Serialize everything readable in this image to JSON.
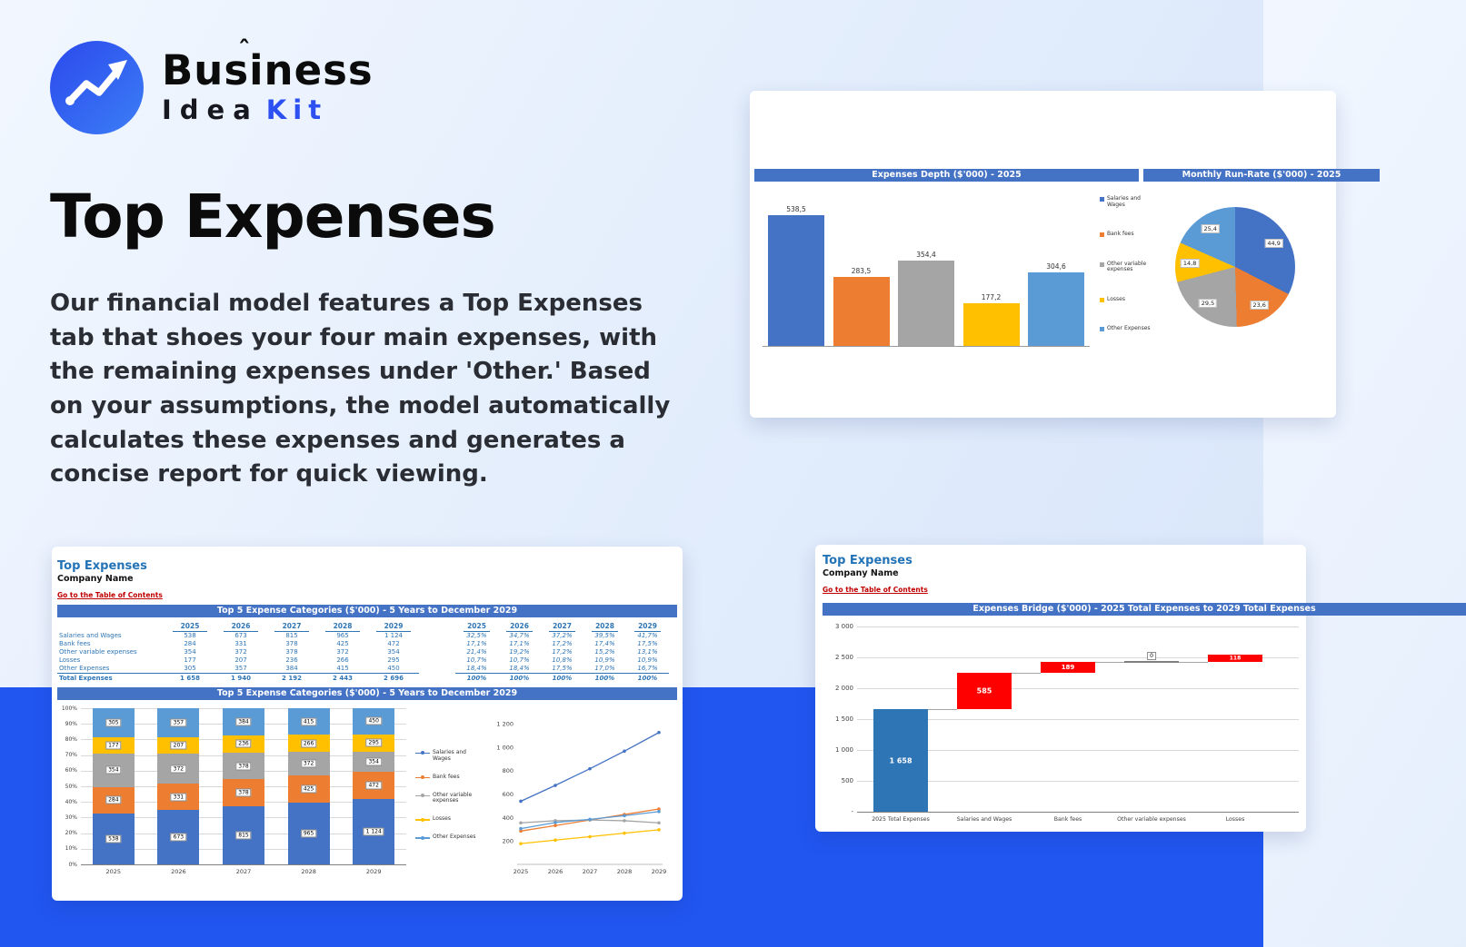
{
  "logo": {
    "name": "Business",
    "caret": "ˆ",
    "idea": "Idea",
    "kit": "Kit"
  },
  "hero": {
    "title": "Top Expenses",
    "description": "Our financial model features a Top Expenses tab that shoes your four main expenses, with the remaining expenses under 'Other.' Based on your assumptions, the model automatically calculates these expenses and generates a concise report for quick viewing."
  },
  "sheet": {
    "title": "Top Expenses",
    "company": "Company Name",
    "toc_link": "Go to the Table of Contents"
  },
  "expense_table": {
    "header": "Top 5 Expense Categories ($'000) - 5 Years to December 2029",
    "chart_header": "Top 5 Expense Categories ($'000) - 5 Years to December 2029",
    "years": [
      "2025",
      "2026",
      "2027",
      "2028",
      "2029"
    ],
    "rows": [
      {
        "label": "Salaries and Wages",
        "values": [
          "538",
          "673",
          "815",
          "965",
          "1 124"
        ],
        "pcts": [
          "32,5%",
          "34,7%",
          "37,2%",
          "39,5%",
          "41,7%"
        ]
      },
      {
        "label": "Bank fees",
        "values": [
          "284",
          "331",
          "378",
          "425",
          "472"
        ],
        "pcts": [
          "17,1%",
          "17,1%",
          "17,2%",
          "17,4%",
          "17,5%"
        ]
      },
      {
        "label": "Other variable expenses",
        "values": [
          "354",
          "372",
          "378",
          "372",
          "354"
        ],
        "pcts": [
          "21,4%",
          "19,2%",
          "17,2%",
          "15,2%",
          "13,1%"
        ]
      },
      {
        "label": "Losses",
        "values": [
          "177",
          "207",
          "236",
          "266",
          "295"
        ],
        "pcts": [
          "10,7%",
          "10,7%",
          "10,8%",
          "10,9%",
          "10,9%"
        ]
      },
      {
        "label": "Other Expenses",
        "values": [
          "305",
          "357",
          "384",
          "415",
          "450"
        ],
        "pcts": [
          "18,4%",
          "18,4%",
          "17,5%",
          "17,0%",
          "16,7%"
        ]
      }
    ],
    "total": {
      "label": "Total Expenses",
      "values": [
        "1 658",
        "1 940",
        "2 192",
        "2 443",
        "2 696"
      ],
      "pcts": [
        "100%",
        "100%",
        "100%",
        "100%",
        "100%"
      ]
    }
  },
  "colors": {
    "series": [
      "#4472c4",
      "#ed7d31",
      "#a5a5a5",
      "#ffc000",
      "#5b9bd5"
    ],
    "excel_header": "#4472c4",
    "waterfall_base": "#2e75b6",
    "waterfall_increase": "#ff0000",
    "band": "#2156f0",
    "accent": "#2d50f3"
  },
  "chart_data": [
    {
      "id": "expenses_depth_bar",
      "type": "bar",
      "title": "Expenses Depth ($'000) - 2025",
      "categories": [
        "Salaries and Wages",
        "Bank fees",
        "Other variable expenses",
        "Losses",
        "Other Expenses"
      ],
      "values": [
        538.5,
        283.5,
        354.4,
        177.2,
        304.6
      ],
      "colors": [
        "#4472c4",
        "#ed7d31",
        "#a5a5a5",
        "#ffc000",
        "#5b9bd5"
      ],
      "ylim": [
        0,
        600
      ],
      "legend_position": "right",
      "grid": false
    },
    {
      "id": "monthly_run_rate_pie",
      "type": "pie",
      "title": "Monthly Run-Rate ($'000) - 2025",
      "categories": [
        "Salaries and Wages",
        "Bank fees",
        "Other variable expenses",
        "Losses",
        "Other Expenses"
      ],
      "values": [
        44.9,
        23.6,
        29.5,
        14.8,
        25.4
      ],
      "colors": [
        "#4472c4",
        "#ed7d31",
        "#a5a5a5",
        "#ffc000",
        "#5b9bd5"
      ]
    },
    {
      "id": "top5_stacked",
      "type": "bar",
      "stacked": true,
      "percent_axis": true,
      "title": "Top 5 Expense Categories ($'000) - 5 Years to December 2029",
      "categories": [
        "2025",
        "2026",
        "2027",
        "2028",
        "2029"
      ],
      "series": [
        {
          "name": "Salaries and Wages",
          "color": "#4472c4",
          "values": [
            538,
            673,
            815,
            965,
            1124
          ]
        },
        {
          "name": "Bank fees",
          "color": "#ed7d31",
          "values": [
            284,
            331,
            378,
            425,
            472
          ]
        },
        {
          "name": "Other variable expenses",
          "color": "#a5a5a5",
          "values": [
            354,
            372,
            378,
            372,
            354
          ]
        },
        {
          "name": "Losses",
          "color": "#ffc000",
          "values": [
            177,
            207,
            236,
            266,
            295
          ]
        },
        {
          "name": "Other Expenses",
          "color": "#5b9bd5",
          "values": [
            305,
            357,
            384,
            415,
            450
          ]
        }
      ],
      "ylim_pct": [
        0,
        100
      ],
      "ytick_step_pct": 10,
      "grid": true
    },
    {
      "id": "top5_lines",
      "type": "line",
      "categories": [
        "2025",
        "2026",
        "2027",
        "2028",
        "2029"
      ],
      "series": [
        {
          "name": "Salaries and Wages",
          "color": "#4472c4",
          "values": [
            538,
            673,
            815,
            965,
            1124
          ]
        },
        {
          "name": "Bank fees",
          "color": "#ed7d31",
          "values": [
            284,
            331,
            378,
            425,
            472
          ]
        },
        {
          "name": "Other variable expenses",
          "color": "#a5a5a5",
          "values": [
            354,
            372,
            378,
            372,
            354
          ]
        },
        {
          "name": "Losses",
          "color": "#ffc000",
          "values": [
            177,
            207,
            236,
            266,
            295
          ]
        },
        {
          "name": "Other Expenses",
          "color": "#5b9bd5",
          "values": [
            305,
            357,
            384,
            415,
            450
          ]
        }
      ],
      "ylim": [
        0,
        1300
      ],
      "yticks": [
        1200,
        1000,
        800,
        600,
        400,
        200
      ],
      "grid": false,
      "legend_position": "left"
    },
    {
      "id": "expenses_bridge",
      "type": "waterfall",
      "title": "Expenses Bridge ($'000) - 2025 Total Expenses to 2029 Total Expenses",
      "steps": [
        {
          "label": "2025 Total Expenses",
          "type": "base",
          "value": 1658
        },
        {
          "label": "Salaries and Wages",
          "type": "increase",
          "value": 585
        },
        {
          "label": "Bank fees",
          "type": "increase",
          "value": 189
        },
        {
          "label": "Other variable expenses",
          "type": "increase",
          "value": 0
        },
        {
          "label": "Losses",
          "type": "increase",
          "value": 118
        }
      ],
      "ylim": [
        0,
        3000
      ],
      "ytick_step": 500,
      "grid": true,
      "colors": {
        "base": "#2e75b6",
        "increase": "#ff0000"
      }
    }
  ]
}
